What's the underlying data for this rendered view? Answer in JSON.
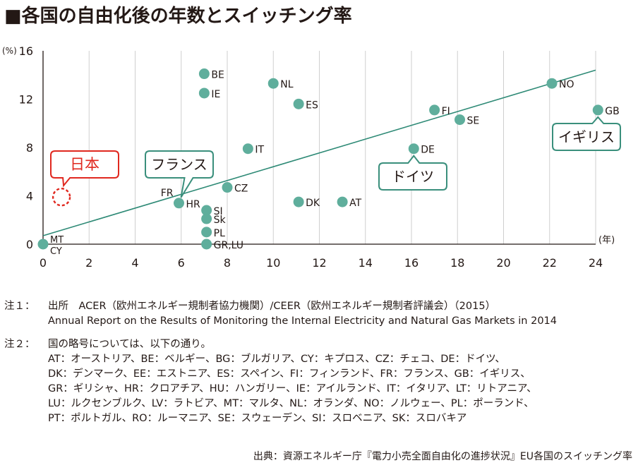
{
  "title": "■各国の自由化後の年数とスイッチング率",
  "chart_data": {
    "type": "scatter",
    "title": "各国の自由化後の年数とスイッチング率",
    "ylabel": "(%)",
    "xlabel": "(年)",
    "xlim": [
      0,
      24
    ],
    "ylim": [
      0,
      16
    ],
    "xticks": [
      0,
      2,
      4,
      6,
      8,
      10,
      12,
      14,
      16,
      18,
      20,
      22,
      24
    ],
    "yticks": [
      0,
      4,
      8,
      12,
      16
    ],
    "grid": "vertical",
    "points": [
      {
        "label": "BE",
        "x": 7,
        "y": 14.1
      },
      {
        "label": "IE",
        "x": 7,
        "y": 12.5
      },
      {
        "label": "NL",
        "x": 10,
        "y": 13.3
      },
      {
        "label": "ES",
        "x": 11.1,
        "y": 11.6
      },
      {
        "label": "FI",
        "x": 17,
        "y": 11.1
      },
      {
        "label": "SE",
        "x": 18.1,
        "y": 10.3
      },
      {
        "label": "NO",
        "x": 22.1,
        "y": 13.3
      },
      {
        "label": "GB",
        "x": 24.1,
        "y": 11.1
      },
      {
        "label": "IT",
        "x": 8.9,
        "y": 7.9
      },
      {
        "label": "DE",
        "x": 16.1,
        "y": 7.9
      },
      {
        "label": "CZ",
        "x": 8,
        "y": 4.7
      },
      {
        "label": "HR",
        "x": 5.9,
        "y": 3.4
      },
      {
        "label": "DK",
        "x": 11.1,
        "y": 3.5
      },
      {
        "label": "AT",
        "x": 13,
        "y": 3.5
      },
      {
        "label": "SI",
        "x": 7.1,
        "y": 2.8
      },
      {
        "label": "Sk",
        "x": 7.1,
        "y": 2.1
      },
      {
        "label": "PL",
        "x": 7.1,
        "y": 1.0
      },
      {
        "label": "GR,LU",
        "x": 7.1,
        "y": 0.0
      },
      {
        "label": "MT CY",
        "x": 0,
        "y": 0.0
      }
    ],
    "extra_labels": [
      {
        "text": "FR",
        "x": 5.9,
        "y": 3.4
      }
    ],
    "trendline": {
      "x1": 0,
      "y1": 0.7,
      "x2": 24,
      "y2": 14.4
    },
    "japan": {
      "label": "日本",
      "x": 0.8,
      "y": 3.9
    },
    "callouts": [
      {
        "text": "フランス",
        "x": 5.9,
        "y": 3.4
      },
      {
        "text": "ドイツ",
        "x": 16.1,
        "y": 7.9
      },
      {
        "text": "イギリス",
        "x": 24.1,
        "y": 11.1
      }
    ],
    "colors": {
      "point": "#5fae9c",
      "line": "#2e8a76",
      "callout_border": "#3a8f7c",
      "japan": "#e0281f",
      "axis": "#231815",
      "grid": "#cfcfcf"
    }
  },
  "notes": {
    "note1_head": "注１：",
    "note1_line1": "出所　ACER（欧州エネルギー規制者協力機関）/CEER（欧州エネルギー規制者評議会）（2015）",
    "note1_line2": "Annual Report on the Results of Monitoring the Internal Electricity and Natural Gas Markets in 2014",
    "note2_head": "注２：",
    "note2_intro": "国の略号については、以下の通り。",
    "note2_lines": [
      "AT：オーストリア、BE：ベルギー、BG：ブルガリア、CY：キプロス、CZ：チェコ、DE：ドイツ、",
      "DK：デンマーク、EE：エストニア、ES：スペイン、FI：フィンランド、FR：フランス、GB：イギリス、",
      "GR：ギリシャ、HR：クロアチア、HU：ハンガリー、IE：アイルランド、IT：イタリア、LT：リトアニア、",
      "LU：ルクセンブルク、LV：ラトビア、MT：マルタ、NL：オランダ、NO：ノルウェー、PL：ポーランド、",
      "PT：ポルトガル、RO：ルーマニア、SE：スウェーデン、SI：スロベニア、SK：スロバキア"
    ]
  },
  "source": "出典：資源エネルギー庁『電力小売全面自由化の進捗状況』EU各国のスイッチング率"
}
